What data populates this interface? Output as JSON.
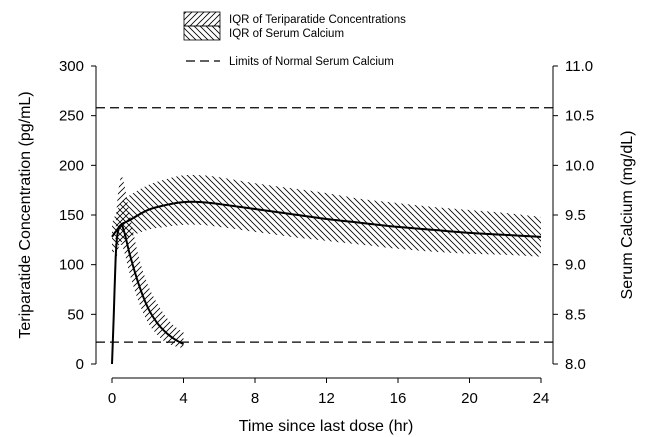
{
  "chart_data": {
    "type": "line",
    "xlabel": "Time since last dose (hr)",
    "ylabel_left": "Teriparatide Concentration (pg/mL)",
    "ylabel_right": "Serum Calcium (mg/dL)",
    "x_ticks": [
      "0",
      "4",
      "8",
      "12",
      "16",
      "20",
      "24"
    ],
    "y_left_ticks": [
      "0",
      "50",
      "100",
      "150",
      "200",
      "250",
      "300"
    ],
    "y_right_ticks": [
      "8.0",
      "8.5",
      "9.0",
      "9.5",
      "10.0",
      "10.5",
      "11.0"
    ],
    "xlim": [
      0,
      24
    ],
    "ylim_left": [
      0,
      300
    ],
    "ylim_right": [
      8.0,
      11.0
    ],
    "legend": [
      {
        "label": "IQR of Teriparatide Concentrations",
        "style": "hatch-forward"
      },
      {
        "label": "IQR of Serum Calcium",
        "style": "hatch-backward"
      },
      {
        "label": "Limits of Normal Serum Calcium",
        "style": "dashed"
      }
    ],
    "series": [
      {
        "name": "Teriparatide Concentrations",
        "axis": "left",
        "x": [
          0,
          0.1,
          0.2,
          0.3,
          0.5,
          0.7,
          1.0,
          1.5,
          2.0,
          2.5,
          3.0,
          3.5,
          4.0
        ],
        "median": [
          0,
          50,
          105,
          130,
          140,
          132,
          110,
          80,
          57,
          42,
          32,
          25,
          20
        ],
        "iqr_low": [
          0,
          38,
          85,
          112,
          120,
          112,
          90,
          62,
          42,
          30,
          22,
          18,
          16
        ],
        "iqr_high": [
          0,
          68,
          130,
          165,
          188,
          180,
          150,
          108,
          80,
          62,
          48,
          38,
          32
        ]
      },
      {
        "name": "Serum Calcium",
        "axis": "right",
        "x": [
          0,
          0.5,
          1,
          2,
          3,
          4,
          5,
          6,
          8,
          10,
          12,
          14,
          16,
          18,
          20,
          22,
          24
        ],
        "median": [
          9.28,
          9.4,
          9.45,
          9.55,
          9.6,
          9.63,
          9.63,
          9.61,
          9.56,
          9.51,
          9.46,
          9.42,
          9.38,
          9.35,
          9.32,
          9.3,
          9.28
        ],
        "iqr_low": [
          9.1,
          9.22,
          9.28,
          9.35,
          9.38,
          9.4,
          9.4,
          9.38,
          9.33,
          9.28,
          9.24,
          9.2,
          9.16,
          9.13,
          9.11,
          9.1,
          9.08
        ],
        "iqr_high": [
          9.42,
          9.62,
          9.7,
          9.8,
          9.86,
          9.9,
          9.9,
          9.88,
          9.82,
          9.77,
          9.72,
          9.66,
          9.62,
          9.58,
          9.55,
          9.52,
          9.48
        ]
      }
    ],
    "reference_lines": [
      {
        "axis": "right",
        "value": 10.58
      },
      {
        "axis": "right",
        "value": 8.22
      }
    ]
  }
}
